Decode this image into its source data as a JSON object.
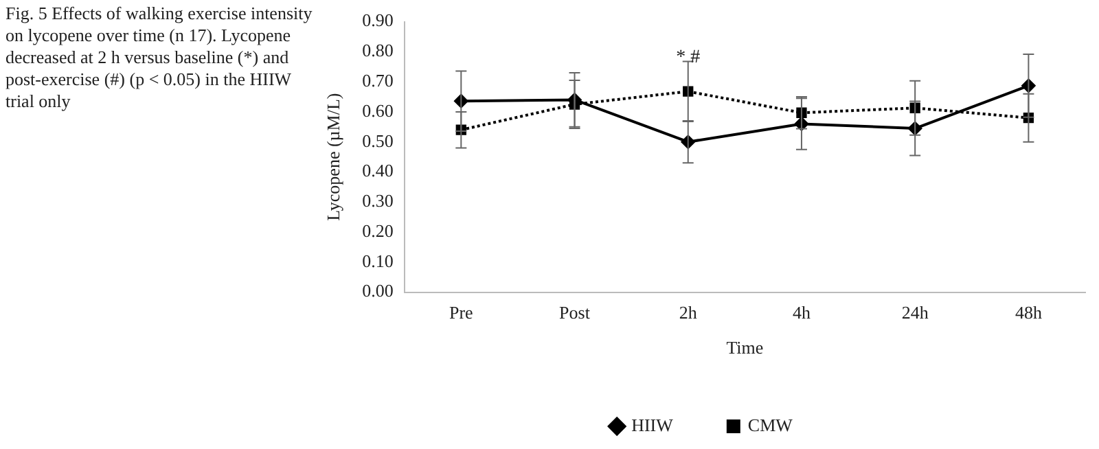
{
  "chart_data": {
    "type": "line",
    "title": "Fig. 5 Effects of walking exercise intensity on lycopene over time (n 17). Lycopene decreased at 2 h versus baseline (*) and post-exercise (#) (p < 0.05) in the HIIW trial only",
    "xlabel": "Time",
    "ylabel": "Lycopene (µM/L)",
    "categories": [
      "Pre",
      "Post",
      "2h",
      "4h",
      "24h",
      "48h"
    ],
    "series": [
      {
        "name": "HIIW",
        "color": "#000000",
        "marker": "diamond",
        "line_style": "solid",
        "values": [
          0.636,
          0.64,
          0.5,
          0.56,
          0.545,
          0.687
        ],
        "errors": [
          0.1,
          0.09,
          0.07,
          0.085,
          0.09,
          0.105
        ]
      },
      {
        "name": "CMW",
        "color": "#000000",
        "marker": "square",
        "line_style": "dotted",
        "values": [
          0.54,
          0.625,
          0.668,
          0.597,
          0.613,
          0.58
        ],
        "errors": [
          0.06,
          0.08,
          0.1,
          0.053,
          0.09,
          0.08
        ]
      }
    ],
    "ylim": [
      0,
      0.9
    ],
    "yticks": [
      {
        "value": 0,
        "label": "0.00"
      },
      {
        "value": 0.1,
        "label": "0.10"
      },
      {
        "value": 0.2,
        "label": "0.20"
      },
      {
        "value": 0.3,
        "label": "0.30"
      },
      {
        "value": 0.4,
        "label": "0.40"
      },
      {
        "value": 0.5,
        "label": "0.50"
      },
      {
        "value": 0.6,
        "label": "0.60"
      },
      {
        "value": 0.7,
        "label": "0.70"
      },
      {
        "value": 0.8,
        "label": "0.80"
      },
      {
        "value": 0.9,
        "label": "0.90"
      }
    ],
    "annotations": [
      {
        "text": "* #",
        "x": "2h",
        "y": 0.78
      }
    ],
    "grid": false,
    "legend": "bottom"
  }
}
